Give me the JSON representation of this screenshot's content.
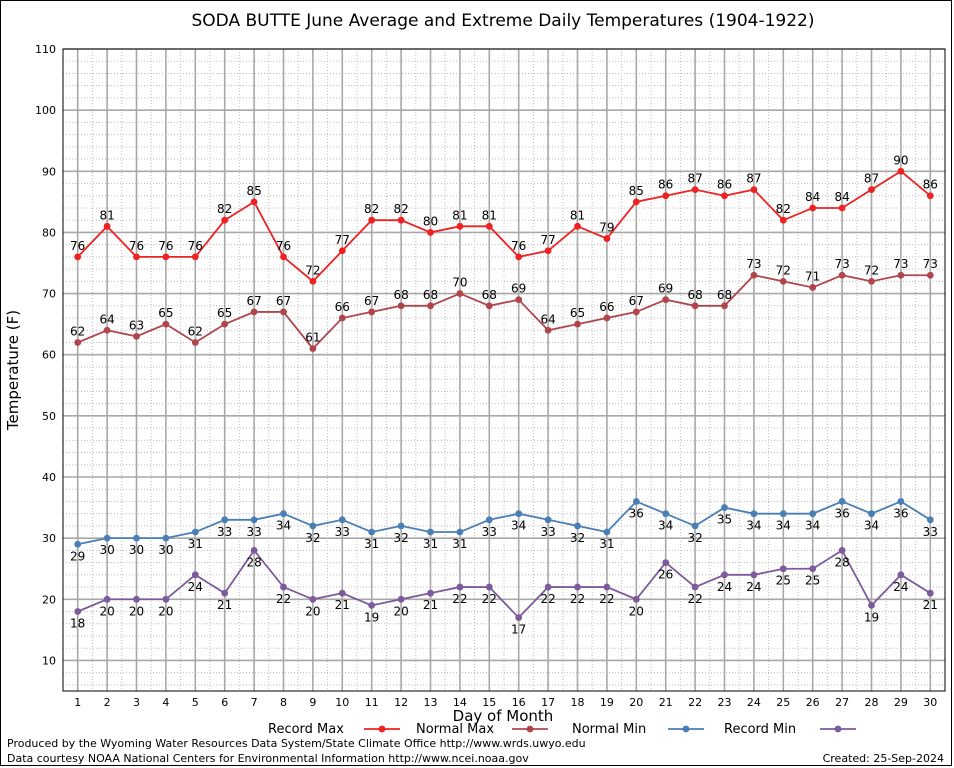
{
  "chart_data": {
    "type": "line",
    "title": "SODA BUTTE June Average and Extreme Daily Temperatures (1904-1922)",
    "xlabel": "Day of Month",
    "ylabel": "Temperature (F)",
    "xlim": [
      1,
      30
    ],
    "ylim": [
      5,
      110
    ],
    "yticks": [
      10,
      20,
      30,
      40,
      50,
      60,
      70,
      80,
      90,
      100,
      110
    ],
    "x": [
      1,
      2,
      3,
      4,
      5,
      6,
      7,
      8,
      9,
      10,
      11,
      12,
      13,
      14,
      15,
      16,
      17,
      18,
      19,
      20,
      21,
      22,
      23,
      24,
      25,
      26,
      27,
      28,
      29,
      30
    ],
    "grid": true,
    "legend_position": "bottom",
    "series": [
      {
        "name": "Record Max",
        "color": "#ee2222",
        "label_pos": "above",
        "values": [
          76,
          81,
          76,
          76,
          76,
          82,
          85,
          76,
          72,
          77,
          82,
          82,
          80,
          81,
          81,
          76,
          77,
          81,
          79,
          85,
          86,
          87,
          86,
          87,
          82,
          84,
          84,
          87,
          90,
          86
        ]
      },
      {
        "name": "Normal Max",
        "color": "#b0464b",
        "label_pos": "above",
        "values": [
          62,
          64,
          63,
          65,
          62,
          65,
          67,
          67,
          61,
          66,
          67,
          68,
          68,
          70,
          68,
          69,
          64,
          65,
          66,
          67,
          69,
          68,
          68,
          73,
          72,
          71,
          73,
          72,
          73,
          73
        ]
      },
      {
        "name": "Normal Min",
        "color": "#4a7fb5",
        "label_pos": "below",
        "values": [
          29,
          30,
          30,
          30,
          31,
          33,
          33,
          34,
          32,
          33,
          31,
          32,
          31,
          31,
          33,
          34,
          33,
          32,
          31,
          36,
          34,
          32,
          35,
          34,
          34,
          34,
          36,
          34,
          36,
          33
        ]
      },
      {
        "name": "Record Min",
        "color": "#7d5a9b",
        "label_pos": "below",
        "values": [
          18,
          20,
          20,
          20,
          24,
          21,
          28,
          22,
          20,
          21,
          19,
          20,
          21,
          22,
          22,
          17,
          22,
          22,
          22,
          20,
          26,
          22,
          24,
          24,
          25,
          25,
          28,
          19,
          24,
          21
        ]
      }
    ]
  },
  "footer": {
    "produced_by": "Produced by the Wyoming Water Resources Data System/State Climate Office http://www.wrds.uwyo.edu",
    "courtesy": "Data courtesy NOAA National Centers for Environmental Information http://www.ncei.noaa.gov",
    "created": "Created:  25-Sep-2024"
  }
}
